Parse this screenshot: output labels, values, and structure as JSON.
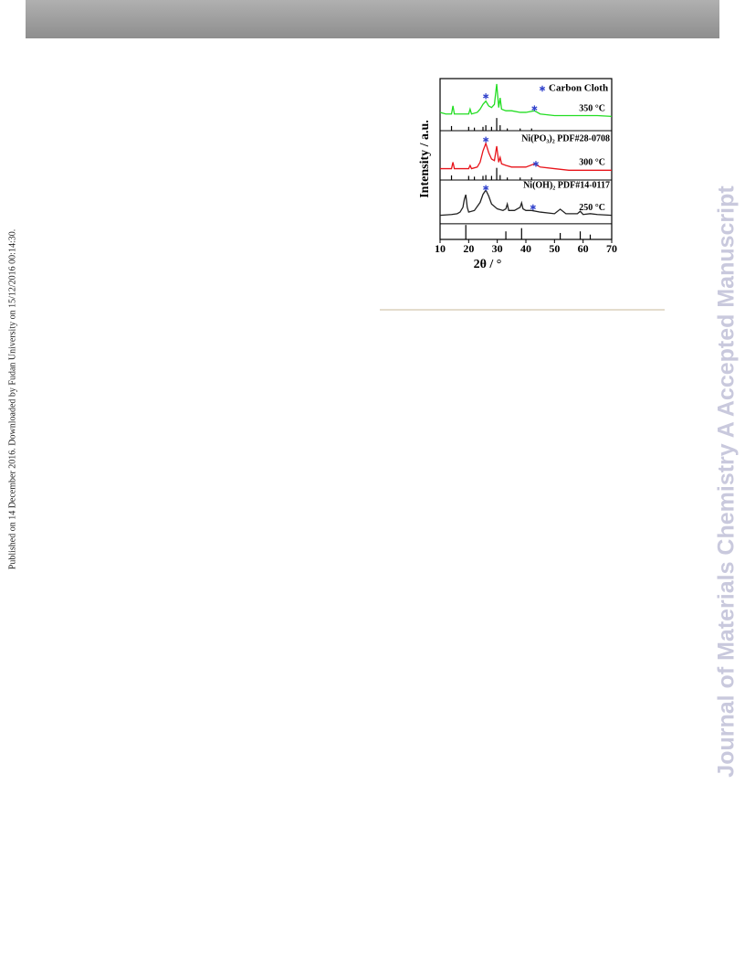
{
  "page": {
    "side_note": "Published on 14 December 2016. Downloaded by Fudan University on 15/12/2016 00:14:30.",
    "watermark": "Journal of Materials Chemistry A Accepted Manuscript"
  },
  "chart_data": {
    "type": "line",
    "xlabel": "2θ / °",
    "ylabel": "Intensity / a.u.",
    "xlim": [
      10,
      70
    ],
    "xticks": [
      10,
      20,
      30,
      40,
      50,
      60,
      70
    ],
    "ylim": [
      0,
      100
    ],
    "series": [
      {
        "name": "350 °C",
        "color": "#22dd22",
        "x": [
          10,
          12,
          14,
          14.5,
          15,
          18,
          20,
          20.5,
          21,
          23,
          24,
          25,
          26,
          27,
          28,
          29,
          29.8,
          30.5,
          31,
          31.5,
          33,
          35,
          38,
          40,
          43,
          45,
          50,
          55,
          60,
          65,
          70
        ],
        "values": [
          79,
          78,
          78,
          83,
          78,
          78,
          78,
          81,
          78,
          79,
          81,
          84,
          86,
          83,
          82,
          84,
          96.6,
          82,
          88,
          81,
          80,
          80,
          79,
          79,
          80,
          78,
          77,
          77,
          77,
          77,
          76.5
        ]
      },
      {
        "name": "300 °C",
        "color": "#e8141b",
        "x": [
          10,
          12,
          14,
          14.5,
          15,
          18,
          20,
          20.5,
          21,
          23,
          24,
          25,
          26,
          27,
          28,
          29,
          29.8,
          30.5,
          31,
          31.5,
          33,
          35,
          38,
          40,
          43,
          45,
          50,
          55,
          60,
          65,
          70
        ],
        "values": [
          44,
          44,
          44,
          48,
          44,
          44,
          44,
          46,
          44,
          45,
          48,
          55,
          59.7,
          54,
          50,
          49,
          58,
          48,
          51,
          47,
          46,
          45,
          45,
          45,
          47,
          45,
          44,
          43,
          43,
          43,
          43
        ]
      },
      {
        "name": "250 °C",
        "color": "#222222",
        "x": [
          10,
          14,
          16,
          17,
          18,
          18.5,
          19,
          19.5,
          20,
          22,
          24,
          25,
          26,
          27,
          28,
          30,
          32,
          33,
          33.5,
          34,
          36,
          38,
          38.5,
          39,
          40,
          42,
          45,
          50,
          52,
          54,
          58,
          59,
          60,
          62.5,
          65,
          70
        ],
        "values": [
          15,
          15.5,
          16,
          17,
          20,
          25,
          27.8,
          20,
          17,
          18,
          23,
          28,
          30.7,
          27,
          22,
          19,
          18,
          19,
          22,
          18,
          18,
          20,
          22.7,
          19,
          18,
          18,
          17,
          16,
          18.8,
          16,
          16,
          17.5,
          15.5,
          16,
          15.5,
          15
        ]
      }
    ],
    "sticks": [
      {
        "baseline": 67.6,
        "x": [
          14,
          20,
          22,
          25,
          26,
          28,
          29.8,
          31,
          33.5,
          38,
          42
        ],
        "values": [
          70.5,
          70,
          69.5,
          70,
          71,
          70,
          75.5,
          71,
          69,
          69,
          69
        ]
      },
      {
        "baseline": 36.9,
        "x": [
          14,
          20,
          22,
          25,
          26,
          28,
          29.8,
          31,
          33.5,
          38,
          42
        ],
        "values": [
          39.8,
          39.5,
          39,
          39.5,
          40,
          39.5,
          44.5,
          40,
          38.5,
          38.5,
          38.5
        ]
      },
      {
        "baseline": 0,
        "x": [
          19,
          33,
          38.5,
          52,
          59,
          62.5
        ],
        "values": [
          9,
          5,
          7,
          4,
          5,
          3
        ]
      }
    ],
    "dividers": [
      67.6,
      36.9,
      9.7
    ],
    "annotations": [
      "Ni(PO₃)₂ PDF#28-0708",
      "Ni(OH)₂ PDF#14-0117"
    ],
    "markers": {
      "name": "Carbon Cloth",
      "color": "#3344cc",
      "x": [
        26,
        43,
        26,
        43.5,
        26,
        42.5
      ],
      "values": [
        89,
        81.5,
        62,
        47,
        32,
        20
      ]
    }
  }
}
